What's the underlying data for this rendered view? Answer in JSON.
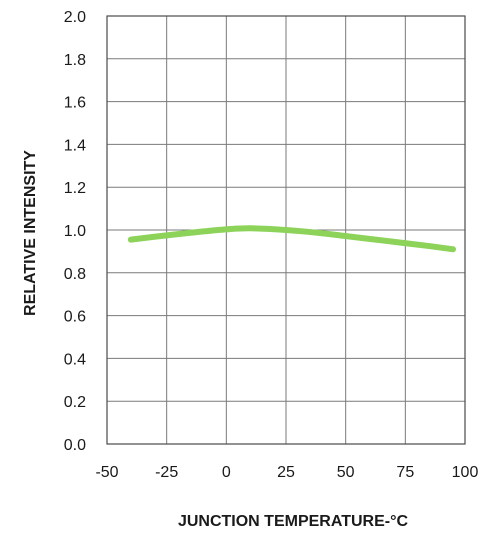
{
  "chart_data": {
    "type": "line",
    "title": "",
    "xlabel": "JUNCTION TEMPERATURE-°C",
    "ylabel": "RELATIVE INTENSITY",
    "xlim": [
      -50,
      100
    ],
    "ylim": [
      0.0,
      2.0
    ],
    "xticks": [
      -50,
      -25,
      0,
      25,
      50,
      75,
      100
    ],
    "xtick_labels": [
      "-50",
      "-25",
      "0",
      "25",
      "50",
      "75",
      "100"
    ],
    "yticks": [
      0.0,
      0.2,
      0.4,
      0.6,
      0.8,
      1.0,
      1.2,
      1.4,
      1.6,
      1.8,
      2.0
    ],
    "ytick_labels": [
      "0.0",
      "0.2",
      "0.4",
      "0.6",
      "0.8",
      "1.0",
      "1.2",
      "1.4",
      "1.6",
      "1.8",
      "2.0"
    ],
    "grid": true,
    "legend": "none",
    "series": [
      {
        "color": "#8dd35a",
        "x": [
          -40,
          -25,
          -10,
          0,
          10,
          25,
          40,
          55,
          70,
          85,
          95
        ],
        "y": [
          0.955,
          0.975,
          0.993,
          1.003,
          1.008,
          1.0,
          0.985,
          0.965,
          0.945,
          0.925,
          0.91
        ]
      }
    ]
  }
}
